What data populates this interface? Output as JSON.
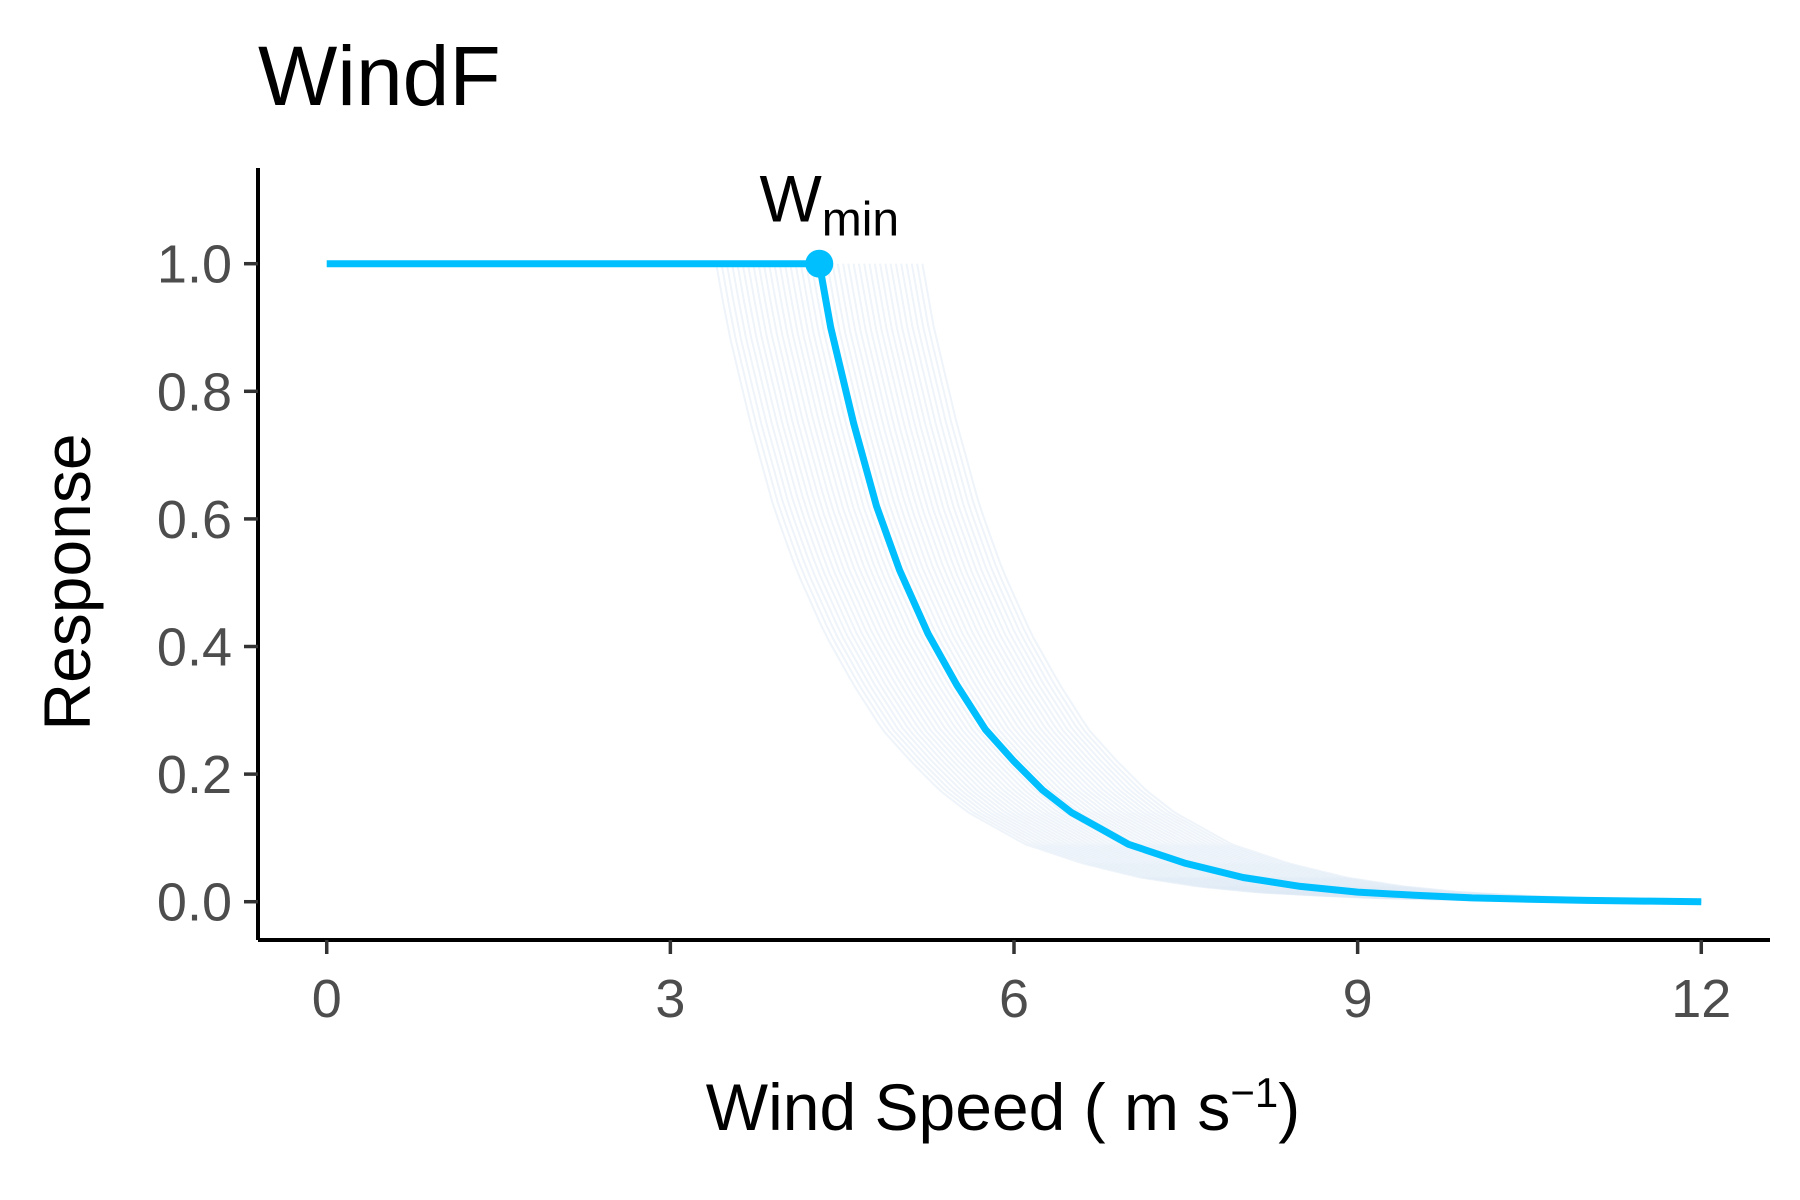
{
  "chart_data": {
    "type": "line",
    "title": "WindF",
    "xlabel": {
      "main": "Wind Speed ( m s",
      "superscript": "−1",
      "close": ")"
    },
    "ylabel": "Response",
    "xlim": [
      -0.6,
      12.6
    ],
    "ylim": [
      -0.06,
      1.15
    ],
    "xticks": [
      0,
      3,
      6,
      9,
      12
    ],
    "xtick_labels": [
      "0",
      "3",
      "6",
      "9",
      "12"
    ],
    "yticks": [
      0.0,
      0.2,
      0.4,
      0.6,
      0.8,
      1.0
    ],
    "ytick_labels": [
      "0.0",
      "0.2",
      "0.4",
      "0.6",
      "0.8",
      "1.0"
    ],
    "grid": false,
    "series": [
      {
        "role": "main",
        "color": "#00BFFF",
        "x": [
          0,
          4.3,
          4.4,
          4.6,
          4.8,
          5.0,
          5.25,
          5.5,
          5.75,
          6.0,
          6.25,
          6.5,
          6.75,
          7.0,
          7.25,
          7.5,
          8.0,
          8.5,
          9.0,
          9.5,
          10.0,
          10.5,
          11.0,
          11.5,
          12.0
        ],
        "y": [
          1.0,
          1.0,
          0.9,
          0.75,
          0.62,
          0.52,
          0.42,
          0.34,
          0.27,
          0.22,
          0.175,
          0.14,
          0.115,
          0.09,
          0.075,
          0.06,
          0.038,
          0.024,
          0.015,
          0.01,
          0.006,
          0.004,
          0.002,
          0.001,
          0.0
        ]
      }
    ],
    "uncertainty_band": {
      "color": "#dde9f5",
      "count": 40,
      "wmin_range": [
        3.4,
        5.2
      ],
      "description": "ensemble of faint response curves with varying W_min"
    },
    "annotation": {
      "point": {
        "x": 4.3,
        "y": 1.0
      },
      "label_main": "W",
      "label_sub": "min"
    }
  }
}
